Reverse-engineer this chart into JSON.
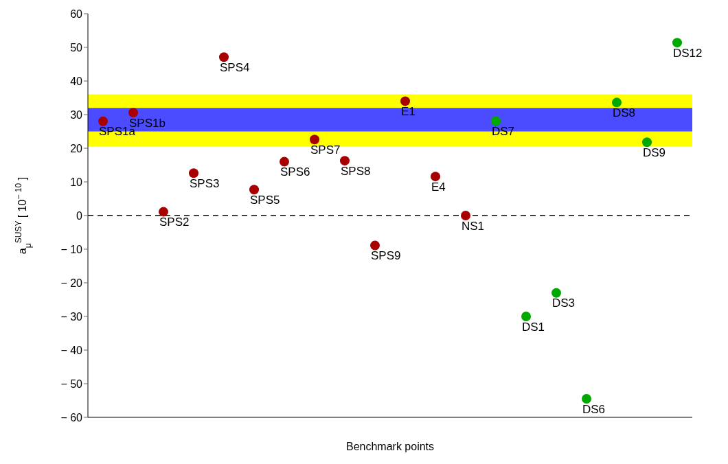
{
  "chart_data": {
    "type": "scatter",
    "xlabel": "Benchmark points",
    "ylabel": "a$_{μ}$$^{SUSY}$ [ 10$^{− 10}$ ]",
    "categories": [
      null,
      null,
      null,
      null,
      null,
      null,
      null,
      null,
      null,
      null,
      null,
      null,
      null,
      null,
      null,
      null,
      null,
      null,
      null,
      null
    ],
    "series": [
      {
        "color": "#a80000",
        "values": [
          28,
          30.6,
          1.1,
          12.6,
          47.1,
          7.7,
          16,
          22.6,
          16.3,
          -8.9,
          34,
          11.6,
          0,
          null,
          null,
          null,
          null,
          null,
          null,
          null
        ],
        "value_labels": [
          "SPS1a",
          "SPS1b",
          "SPS2",
          "SPS3",
          "SPS4",
          "SPS5",
          "SPS6",
          "SPS7",
          "SPS8",
          "SPS9",
          "E1",
          "E4",
          "NS1",
          null,
          null,
          null,
          null,
          null,
          null,
          null
        ]
      },
      {
        "color": "#00a800",
        "values": [
          null,
          null,
          null,
          null,
          null,
          null,
          null,
          null,
          null,
          null,
          null,
          null,
          null,
          28.1,
          -30,
          -23,
          -54.5,
          33.6,
          21.8,
          51.4
        ],
        "value_labels": [
          null,
          null,
          null,
          null,
          null,
          null,
          null,
          null,
          null,
          null,
          null,
          null,
          null,
          "DS7",
          "DS1",
          "DS3",
          "DS6",
          "DS8",
          "DS9",
          "DS12"
        ]
      }
    ],
    "ylim": [
      -60,
      60
    ],
    "yticks": [
      -60,
      -50,
      -40,
      -30,
      -20,
      -10,
      0,
      10,
      20,
      30,
      40,
      50,
      60
    ],
    "bands": [
      {
        "axis": "y",
        "from": 20.5,
        "to": 36,
        "color": "#ffff00"
      },
      {
        "axis": "y",
        "from": 25,
        "to": 32,
        "color": "#4b4bff"
      }
    ],
    "ref_lines": [
      {
        "axis": "y",
        "value": 0,
        "color": "#000000",
        "line_style": "dashed"
      }
    ],
    "marker": "circle",
    "tick_labels": "y",
    "grid": false,
    "legend": false
  }
}
